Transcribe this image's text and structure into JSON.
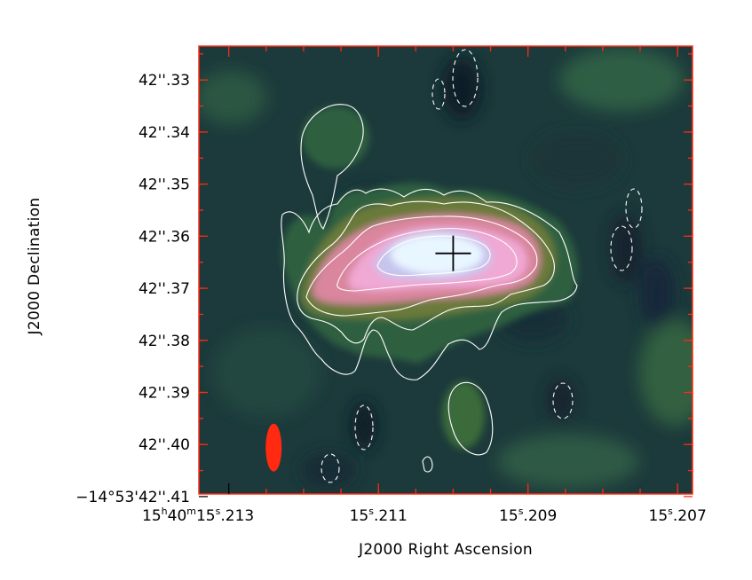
{
  "chart_data": {
    "type": "heatmap",
    "title": "",
    "xlabel": "J2000 Right Ascension",
    "ylabel": "J2000 Declination",
    "x_ticks": [
      {
        "value": 15.213,
        "label_main": "15",
        "label_sup1": "h",
        "label_mid": "40",
        "label_sup2": "m",
        "label_tail": "15",
        "label_sup3": "s",
        "label_end": ".213"
      },
      {
        "value": 15.211,
        "label_main": "15",
        "label_sup1": "s",
        "label_end": ".211"
      },
      {
        "value": 15.209,
        "label_main": "15",
        "label_sup1": "s",
        "label_end": ".209"
      },
      {
        "value": 15.207,
        "label_main": "15",
        "label_sup1": "s",
        "label_end": ".207"
      }
    ],
    "y_ticks": [
      {
        "value": 42.33,
        "label": "42''.33"
      },
      {
        "value": 42.34,
        "label": "42''.34"
      },
      {
        "value": 42.35,
        "label": "42''.35"
      },
      {
        "value": 42.36,
        "label": "42''.36"
      },
      {
        "value": 42.37,
        "label": "42''.37"
      },
      {
        "value": 42.38,
        "label": "42''.38"
      },
      {
        "value": 42.39,
        "label": "42''.39"
      },
      {
        "value": 42.4,
        "label": "42''.40"
      },
      {
        "value": 42.41,
        "label": "−14°53'42''.41"
      }
    ],
    "x_range": [
      15.2134,
      15.2068
    ],
    "y_range": [
      42.3235,
      42.4095
    ],
    "source_peak": {
      "ra": 15.21,
      "dec": 42.3633
    },
    "colormap": [
      "#0f1e2e",
      "#1c3d3c",
      "#2f5c45",
      "#5a7a3c",
      "#a25a58",
      "#e58aa8",
      "#f1a6d2",
      "#c8c2ee",
      "#e8f6ff"
    ],
    "contour_color": "#ffffff",
    "beam_color": "#ff2a10",
    "frame_tick_color": "#ff2a10",
    "marker": "cross"
  }
}
